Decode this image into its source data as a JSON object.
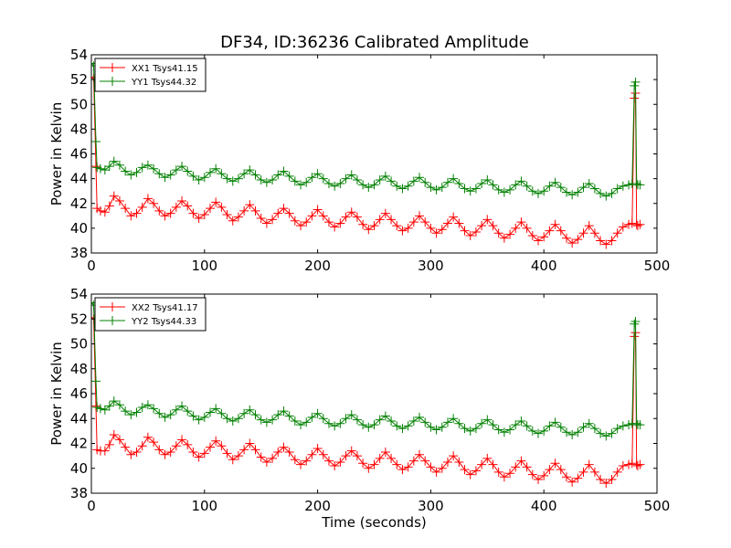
{
  "figure_title": "DF34, ID:36236 Calibrated Amplitude",
  "chart_data": [
    {
      "type": "line",
      "xlabel": "",
      "ylabel": "Power in Kelvin",
      "xlim": [
        0,
        500
      ],
      "ylim": [
        38,
        54
      ],
      "xticks": [
        "0",
        "100",
        "200",
        "300",
        "400",
        "500"
      ],
      "yticks": [
        "38",
        "40",
        "42",
        "44",
        "46",
        "48",
        "50",
        "52",
        "54"
      ],
      "grid": false,
      "legend_position": "top-left",
      "series": [
        {
          "name": "XX1 Tsys41.15",
          "color": "#ff0000",
          "marker": "plus",
          "x": [
            0,
            2,
            4,
            5,
            8,
            12,
            16,
            20,
            25,
            30,
            35,
            40,
            45,
            50,
            55,
            60,
            65,
            70,
            75,
            80,
            85,
            90,
            95,
            100,
            105,
            110,
            115,
            120,
            125,
            130,
            135,
            140,
            145,
            150,
            155,
            160,
            165,
            170,
            175,
            180,
            185,
            190,
            195,
            200,
            205,
            210,
            215,
            220,
            225,
            230,
            235,
            240,
            245,
            250,
            255,
            260,
            265,
            270,
            275,
            280,
            285,
            290,
            295,
            300,
            305,
            310,
            315,
            320,
            325,
            330,
            335,
            340,
            345,
            350,
            355,
            360,
            365,
            370,
            375,
            380,
            385,
            390,
            395,
            400,
            405,
            410,
            415,
            420,
            425,
            430,
            435,
            440,
            445,
            450,
            455,
            460,
            465,
            470,
            475,
            478,
            480,
            481,
            482,
            483,
            485
          ],
          "y": [
            52.2,
            52.1,
            45.0,
            41.6,
            41.4,
            41.3,
            41.8,
            42.6,
            42.2,
            41.6,
            41.0,
            41.2,
            41.7,
            42.4,
            42.0,
            41.4,
            41.0,
            41.2,
            41.7,
            42.2,
            41.8,
            41.2,
            40.8,
            41.1,
            41.6,
            42.1,
            41.7,
            41.1,
            40.6,
            40.9,
            41.4,
            41.9,
            41.4,
            40.8,
            40.4,
            40.7,
            41.2,
            41.6,
            41.2,
            40.6,
            40.2,
            40.5,
            41.0,
            41.5,
            41.0,
            40.5,
            40.1,
            40.4,
            40.9,
            41.3,
            40.9,
            40.3,
            39.9,
            40.2,
            40.7,
            41.2,
            40.7,
            40.2,
            39.8,
            40.0,
            40.5,
            41.0,
            40.5,
            40.0,
            39.6,
            39.9,
            40.4,
            40.9,
            40.4,
            39.8,
            39.4,
            39.7,
            40.2,
            40.7,
            40.2,
            39.6,
            39.2,
            39.5,
            40.0,
            40.5,
            40.0,
            39.4,
            39.0,
            39.3,
            39.8,
            40.3,
            39.8,
            39.2,
            38.8,
            39.1,
            39.6,
            40.2,
            39.6,
            39.0,
            38.7,
            39.0,
            39.6,
            40.1,
            40.3,
            40.4,
            50.5,
            50.9,
            40.3,
            40.2,
            40.3
          ]
        },
        {
          "name": "YY1 Tsys44.32",
          "color": "#008000",
          "marker": "plus",
          "x": [
            0,
            2,
            4,
            5,
            8,
            12,
            16,
            20,
            25,
            30,
            35,
            40,
            45,
            50,
            55,
            60,
            65,
            70,
            75,
            80,
            85,
            90,
            95,
            100,
            105,
            110,
            115,
            120,
            125,
            130,
            135,
            140,
            145,
            150,
            155,
            160,
            165,
            170,
            175,
            180,
            185,
            190,
            195,
            200,
            205,
            210,
            215,
            220,
            225,
            230,
            235,
            240,
            245,
            250,
            255,
            260,
            265,
            270,
            275,
            280,
            285,
            290,
            295,
            300,
            305,
            310,
            315,
            320,
            325,
            330,
            335,
            340,
            345,
            350,
            355,
            360,
            365,
            370,
            375,
            380,
            385,
            390,
            395,
            400,
            405,
            410,
            415,
            420,
            425,
            430,
            435,
            440,
            445,
            450,
            455,
            460,
            465,
            470,
            475,
            478,
            480,
            481,
            482,
            483,
            485
          ],
          "y": [
            53.3,
            53.1,
            47.0,
            44.9,
            44.8,
            44.7,
            45.0,
            45.4,
            45.1,
            44.6,
            44.3,
            44.5,
            44.9,
            45.1,
            44.8,
            44.4,
            44.1,
            44.3,
            44.7,
            45.0,
            44.6,
            44.2,
            43.9,
            44.1,
            44.5,
            44.8,
            44.4,
            44.0,
            43.8,
            44.0,
            44.4,
            44.7,
            44.3,
            43.9,
            43.7,
            43.9,
            44.3,
            44.6,
            44.2,
            43.8,
            43.5,
            43.7,
            44.1,
            44.4,
            44.0,
            43.6,
            43.4,
            43.6,
            44.0,
            44.3,
            43.9,
            43.5,
            43.3,
            43.5,
            43.9,
            44.2,
            43.8,
            43.4,
            43.2,
            43.4,
            43.8,
            44.1,
            43.7,
            43.3,
            43.1,
            43.3,
            43.7,
            44.0,
            43.6,
            43.2,
            43.0,
            43.2,
            43.6,
            43.9,
            43.5,
            43.1,
            42.9,
            43.1,
            43.5,
            43.8,
            43.4,
            43.0,
            42.8,
            43.0,
            43.4,
            43.7,
            43.3,
            42.9,
            42.7,
            42.9,
            43.3,
            43.6,
            43.2,
            42.8,
            42.6,
            42.8,
            43.2,
            43.4,
            43.5,
            43.6,
            51.5,
            51.8,
            43.6,
            43.5,
            43.5
          ]
        }
      ]
    },
    {
      "type": "line",
      "xlabel": "Time (seconds)",
      "ylabel": "Power in Kelvin",
      "xlim": [
        0,
        500
      ],
      "ylim": [
        38,
        54
      ],
      "xticks": [
        "0",
        "100",
        "200",
        "300",
        "400",
        "500"
      ],
      "yticks": [
        "38",
        "40",
        "42",
        "44",
        "46",
        "48",
        "50",
        "52",
        "54"
      ],
      "grid": false,
      "legend_position": "top-left",
      "series": [
        {
          "name": "XX2 Tsys41.17",
          "color": "#ff0000",
          "marker": "plus",
          "x": [
            0,
            2,
            4,
            5,
            8,
            12,
            16,
            20,
            25,
            30,
            35,
            40,
            45,
            50,
            55,
            60,
            65,
            70,
            75,
            80,
            85,
            90,
            95,
            100,
            105,
            110,
            115,
            120,
            125,
            130,
            135,
            140,
            145,
            150,
            155,
            160,
            165,
            170,
            175,
            180,
            185,
            190,
            195,
            200,
            205,
            210,
            215,
            220,
            225,
            230,
            235,
            240,
            245,
            250,
            255,
            260,
            265,
            270,
            275,
            280,
            285,
            290,
            295,
            300,
            305,
            310,
            315,
            320,
            325,
            330,
            335,
            340,
            345,
            350,
            355,
            360,
            365,
            370,
            375,
            380,
            385,
            390,
            395,
            400,
            405,
            410,
            415,
            420,
            425,
            430,
            435,
            440,
            445,
            450,
            455,
            460,
            465,
            470,
            475,
            478,
            480,
            481,
            482,
            483,
            485
          ],
          "y": [
            52.1,
            52.0,
            45.0,
            41.5,
            41.4,
            41.4,
            41.9,
            42.7,
            42.3,
            41.7,
            41.1,
            41.3,
            41.8,
            42.5,
            42.1,
            41.5,
            41.1,
            41.3,
            41.8,
            42.3,
            41.9,
            41.3,
            40.9,
            41.2,
            41.7,
            42.2,
            41.8,
            41.2,
            40.7,
            41.0,
            41.5,
            42.0,
            41.5,
            40.9,
            40.5,
            40.8,
            41.3,
            41.7,
            41.3,
            40.7,
            40.3,
            40.6,
            41.1,
            41.6,
            41.1,
            40.6,
            40.2,
            40.5,
            41.0,
            41.4,
            41.0,
            40.4,
            40.0,
            40.3,
            40.8,
            41.3,
            40.8,
            40.3,
            39.9,
            40.1,
            40.6,
            41.1,
            40.6,
            40.1,
            39.7,
            40.0,
            40.5,
            41.0,
            40.5,
            39.9,
            39.5,
            39.8,
            40.3,
            40.8,
            40.3,
            39.7,
            39.3,
            39.6,
            40.1,
            40.6,
            40.1,
            39.5,
            39.1,
            39.4,
            39.9,
            40.4,
            39.9,
            39.3,
            38.9,
            39.2,
            39.7,
            40.3,
            39.7,
            39.1,
            38.8,
            39.1,
            39.7,
            40.2,
            40.3,
            40.4,
            50.6,
            50.9,
            40.3,
            40.2,
            40.3
          ]
        },
        {
          "name": "YY2 Tsys44.33",
          "color": "#008000",
          "marker": "plus",
          "x": [
            0,
            2,
            4,
            5,
            8,
            12,
            16,
            20,
            25,
            30,
            35,
            40,
            45,
            50,
            55,
            60,
            65,
            70,
            75,
            80,
            85,
            90,
            95,
            100,
            105,
            110,
            115,
            120,
            125,
            130,
            135,
            140,
            145,
            150,
            155,
            160,
            165,
            170,
            175,
            180,
            185,
            190,
            195,
            200,
            205,
            210,
            215,
            220,
            225,
            230,
            235,
            240,
            245,
            250,
            255,
            260,
            265,
            270,
            275,
            280,
            285,
            290,
            295,
            300,
            305,
            310,
            315,
            320,
            325,
            330,
            335,
            340,
            345,
            350,
            355,
            360,
            365,
            370,
            375,
            380,
            385,
            390,
            395,
            400,
            405,
            410,
            415,
            420,
            425,
            430,
            435,
            440,
            445,
            450,
            455,
            460,
            465,
            470,
            475,
            478,
            480,
            481,
            482,
            483,
            485
          ],
          "y": [
            53.3,
            53.1,
            47.0,
            44.9,
            44.8,
            44.7,
            45.0,
            45.4,
            45.1,
            44.6,
            44.3,
            44.5,
            44.9,
            45.1,
            44.8,
            44.4,
            44.1,
            44.3,
            44.7,
            45.0,
            44.6,
            44.2,
            43.9,
            44.1,
            44.5,
            44.8,
            44.4,
            44.0,
            43.8,
            44.0,
            44.4,
            44.7,
            44.3,
            43.9,
            43.7,
            43.9,
            44.3,
            44.6,
            44.2,
            43.8,
            43.5,
            43.7,
            44.1,
            44.4,
            44.0,
            43.6,
            43.4,
            43.6,
            44.0,
            44.3,
            43.9,
            43.5,
            43.3,
            43.5,
            43.9,
            44.2,
            43.8,
            43.4,
            43.2,
            43.4,
            43.8,
            44.1,
            43.7,
            43.3,
            43.1,
            43.3,
            43.7,
            44.0,
            43.6,
            43.2,
            43.0,
            43.2,
            43.6,
            43.9,
            43.5,
            43.1,
            42.9,
            43.1,
            43.5,
            43.8,
            43.4,
            43.0,
            42.8,
            43.0,
            43.4,
            43.7,
            43.3,
            42.9,
            42.7,
            42.9,
            43.3,
            43.6,
            43.2,
            42.8,
            42.6,
            42.8,
            43.2,
            43.4,
            43.5,
            43.6,
            51.6,
            51.8,
            43.6,
            43.5,
            43.5
          ]
        }
      ]
    }
  ]
}
